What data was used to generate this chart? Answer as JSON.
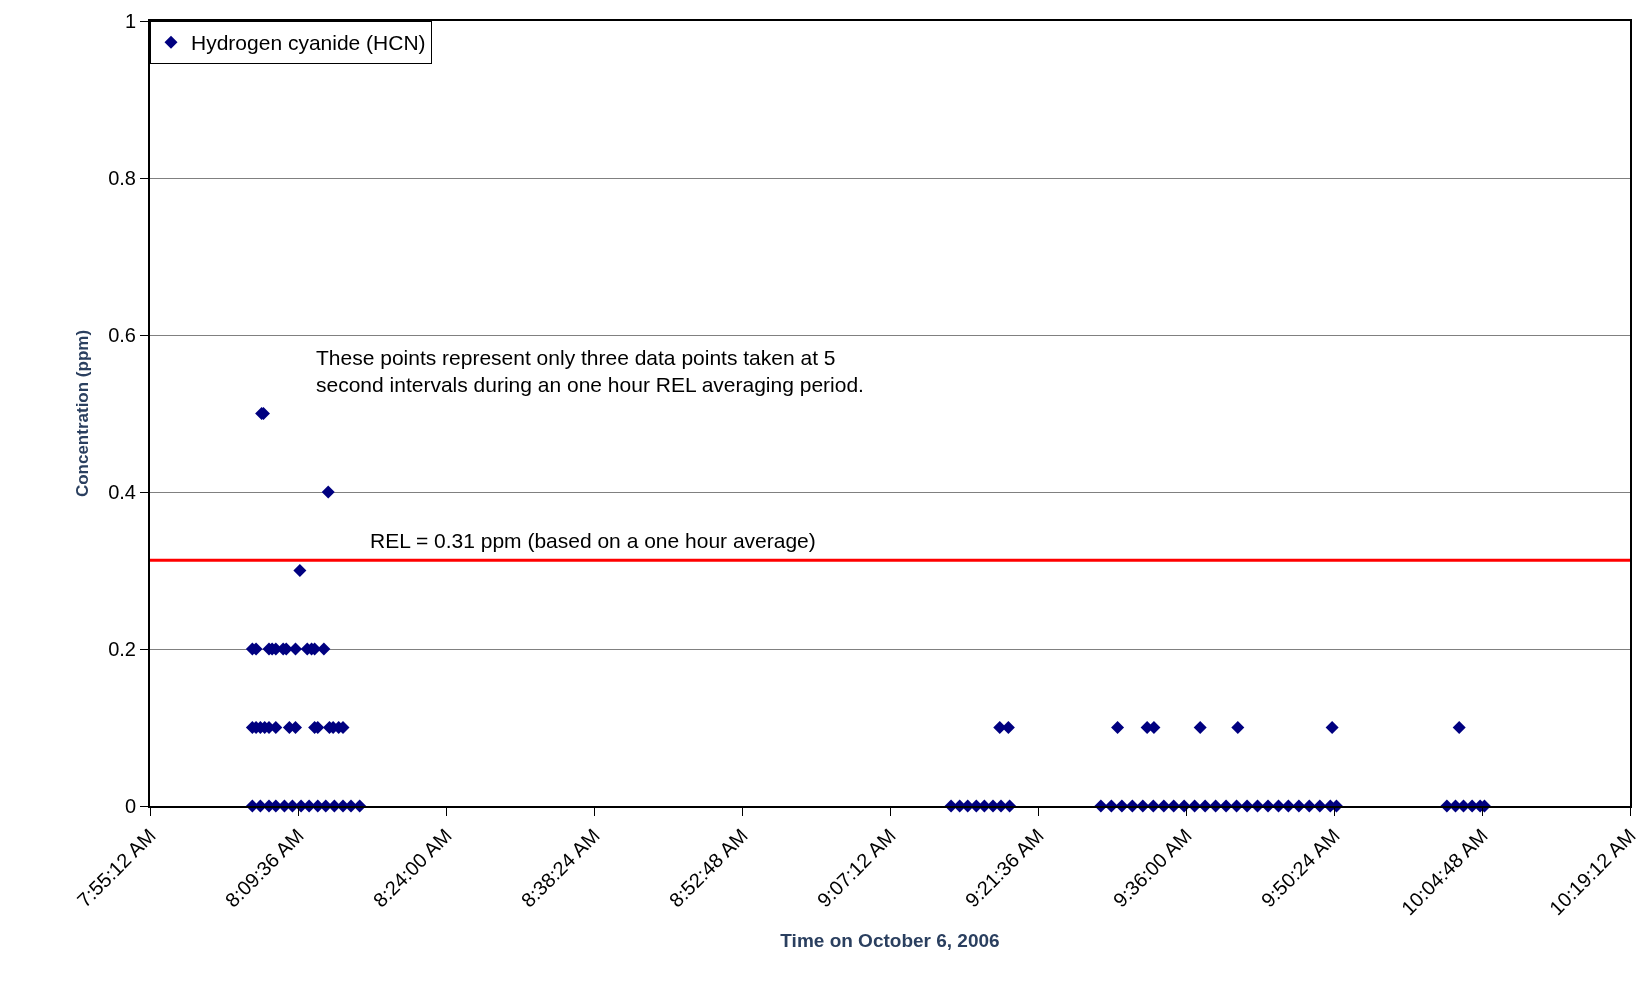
{
  "chart_data": {
    "type": "scatter",
    "xlabel": "Time on October 6, 2006",
    "ylabel": "Concentration (ppm)",
    "series": [
      {
        "name": "Hydrogen cyanide (HCN)",
        "color": "#000080",
        "x": [
          8.101,
          8.104,
          8.209,
          8.163,
          8.086,
          8.092,
          8.113,
          8.118,
          8.124,
          8.136,
          8.141,
          8.156,
          8.175,
          8.182,
          8.187,
          8.202,
          8.086,
          8.092,
          8.099,
          8.106,
          8.113,
          8.124,
          8.146,
          8.156,
          8.187,
          8.192,
          8.211,
          8.217,
          8.226,
          8.233,
          8.086,
          8.099,
          8.113,
          8.124,
          8.138,
          8.151,
          8.165,
          8.178,
          8.192,
          8.205,
          8.219,
          8.233,
          8.246,
          8.26,
          9.219,
          9.233,
          9.246,
          9.26,
          9.273,
          9.287,
          9.3,
          9.314,
          9.298,
          9.312,
          9.462,
          9.479,
          9.496,
          9.513,
          9.53,
          9.547,
          9.564,
          9.58,
          9.597,
          9.614,
          9.631,
          9.648,
          9.665,
          9.682,
          9.699,
          9.716,
          9.733,
          9.75,
          9.766,
          9.783,
          9.8,
          9.817,
          9.834,
          9.844,
          9.489,
          9.537,
          9.548,
          9.623,
          9.684,
          9.837,
          10.023,
          10.037,
          10.05,
          10.064,
          10.077,
          10.084,
          10.043
        ],
        "values": [
          0.5,
          0.5,
          0.4,
          0.3,
          0.2,
          0.2,
          0.2,
          0.2,
          0.2,
          0.2,
          0.2,
          0.2,
          0.2,
          0.2,
          0.2,
          0.2,
          0.1,
          0.1,
          0.1,
          0.1,
          0.1,
          0.1,
          0.1,
          0.1,
          0.1,
          0.1,
          0.1,
          0.1,
          0.1,
          0.1,
          0,
          0,
          0,
          0,
          0,
          0,
          0,
          0,
          0,
          0,
          0,
          0,
          0,
          0,
          0,
          0,
          0,
          0,
          0,
          0,
          0,
          0,
          0.1,
          0.1,
          0,
          0,
          0,
          0,
          0,
          0,
          0,
          0,
          0,
          0,
          0,
          0,
          0,
          0,
          0,
          0,
          0,
          0,
          0,
          0,
          0,
          0,
          0,
          0,
          0.1,
          0.1,
          0.1,
          0.1,
          0.1,
          0.1,
          0,
          0,
          0,
          0,
          0,
          0,
          0.1
        ]
      }
    ],
    "marker": "diamond",
    "xlim": [
      7.92,
      10.32
    ],
    "xticks": [
      {
        "value": 7.92,
        "label": "7:55:12 AM"
      },
      {
        "value": 8.16,
        "label": "8:09:36 AM"
      },
      {
        "value": 8.4,
        "label": "8:24:00 AM"
      },
      {
        "value": 8.64,
        "label": "8:38:24 AM"
      },
      {
        "value": 8.88,
        "label": "8:52:48 AM"
      },
      {
        "value": 9.12,
        "label": "9:07:12 AM"
      },
      {
        "value": 9.36,
        "label": "9:21:36 AM"
      },
      {
        "value": 9.6,
        "label": "9:36:00 AM"
      },
      {
        "value": 9.84,
        "label": "9:50:24 AM"
      },
      {
        "value": 10.08,
        "label": "10:04:48 AM"
      },
      {
        "value": 10.32,
        "label": "10:19:12 AM"
      }
    ],
    "ylim": [
      0,
      1
    ],
    "yticks": [
      0,
      0.2,
      0.4,
      0.6,
      0.8,
      1
    ],
    "grid": "y",
    "legend": "top left",
    "ref_lines": [
      {
        "axis": "y",
        "value": 0.313,
        "label": "REL = 0.31 ppm (based on a one hour average)",
        "color": "#ff0000",
        "line_style": "solid"
      }
    ],
    "annotations": [
      "These points represent only three data points taken at 5 second intervals during an one hour REL averaging period."
    ]
  }
}
